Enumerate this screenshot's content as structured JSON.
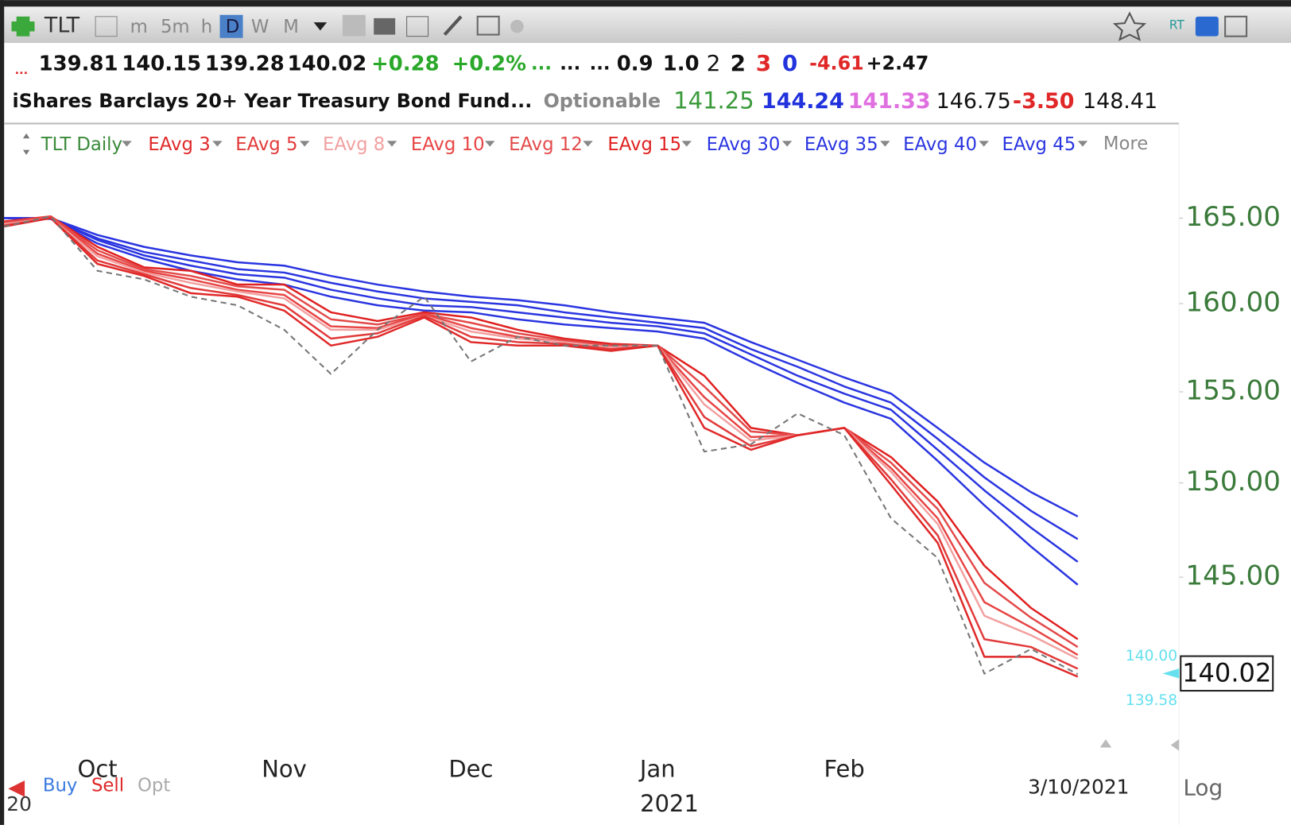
{
  "toolbar": {
    "symbol": "TLT",
    "intervals": [
      "m",
      "5m",
      "h",
      "D",
      "W",
      "M"
    ],
    "rt": "RT"
  },
  "quote_line_1": [
    "...",
    "139.81",
    "140.15",
    "139.28",
    "140.02",
    "+0.28",
    "+0.2%",
    "...",
    "...",
    "...",
    "0.9",
    "1.0",
    "2",
    "2",
    "3",
    "0",
    "-4.61",
    "+2.47"
  ],
  "quote_line_2": [
    "iShares Barclays 20+ Year Treasury Bond Fund",
    "...",
    "Optionable",
    "141.25",
    "144.24",
    "141.33",
    "146.75",
    "-3.50",
    "148.41"
  ],
  "legend_more": "More",
  "bottom": {
    "buy": "Buy",
    "sell": "Sell",
    "opt": "Opt",
    "log": "Log",
    "left_year": "20",
    "year": "2021",
    "last_date": "3/10/2021"
  },
  "price_markers": {
    "upper": "140.00",
    "last": "140.02",
    "lower": "139.58"
  },
  "chart_data": {
    "type": "line",
    "log_scale": true,
    "ylim": [
      136.7,
      168.2
    ],
    "yticks": [
      {
        "value": 165,
        "label": "165.00"
      },
      {
        "value": 160,
        "label": "160.00"
      },
      {
        "value": 155,
        "label": "155.00"
      },
      {
        "value": 150,
        "label": "150.00"
      },
      {
        "value": 145,
        "label": "145.00"
      }
    ],
    "categories": [
      null,
      null,
      "Oct",
      null,
      null,
      null,
      "Nov",
      null,
      null,
      null,
      "Dec",
      null,
      null,
      null,
      "Jan",
      null,
      null,
      null,
      "Feb",
      null,
      null,
      null,
      null,
      null
    ],
    "series": [
      {
        "name": "TLT Daily",
        "color": "#777777",
        "dashed": true,
        "values": [
          164.5,
          165.1,
          161.9,
          161.4,
          160.4,
          159.9,
          158.5,
          156.0,
          158.5,
          160.4,
          156.7,
          158.1,
          157.6,
          157.6,
          157.6,
          151.7,
          152.1,
          153.8,
          152.6,
          148.1,
          146.0,
          140.05,
          141.3,
          140.02
        ]
      },
      {
        "name": "EAvg 3",
        "color": "#e02828",
        "values": [
          164.5,
          165.0,
          162.3,
          161.6,
          160.6,
          160.4,
          159.6,
          157.6,
          158.1,
          159.2,
          157.8,
          157.6,
          157.6,
          157.3,
          157.6,
          153.0,
          151.8,
          152.6,
          153.0,
          149.9,
          146.8,
          140.9,
          140.9,
          139.9
        ]
      },
      {
        "name": "EAvg 5",
        "color": "#e23a3a",
        "values": [
          164.56,
          165.0,
          162.5,
          161.7,
          160.9,
          160.5,
          159.9,
          158.0,
          158.3,
          159.3,
          158.1,
          157.8,
          157.7,
          157.4,
          157.6,
          153.6,
          152.0,
          152.6,
          153.0,
          150.2,
          147.2,
          141.8,
          141.4,
          140.3
        ]
      },
      {
        "name": "EAvg 8",
        "color": "#f2a0a0",
        "values": [
          164.64,
          165.0,
          162.75,
          161.8,
          161.2,
          160.7,
          160.3,
          158.5,
          158.5,
          159.3,
          158.4,
          158.0,
          157.8,
          157.5,
          157.6,
          154.3,
          152.3,
          152.6,
          153.0,
          150.6,
          147.8,
          143.0,
          142.0,
          140.8
        ]
      },
      {
        "name": "EAvg 10",
        "color": "#e84444",
        "values": [
          164.68,
          165.1,
          162.9,
          161.9,
          161.4,
          160.8,
          160.5,
          158.7,
          158.6,
          159.4,
          158.6,
          158.1,
          157.8,
          157.5,
          157.6,
          154.7,
          152.5,
          152.6,
          153.0,
          150.8,
          148.1,
          143.7,
          142.4,
          141.0
        ]
      },
      {
        "name": "EAvg 12",
        "color": "#e34a4a",
        "values": [
          164.74,
          165.1,
          163.1,
          162.0,
          161.6,
          161.0,
          160.8,
          159.1,
          158.8,
          159.4,
          158.9,
          158.3,
          157.9,
          157.6,
          157.6,
          155.3,
          152.8,
          152.6,
          153.0,
          151.1,
          148.6,
          144.7,
          142.9,
          141.4
        ]
      },
      {
        "name": "EAvg 15",
        "color": "#e02020",
        "values": [
          164.8,
          165.1,
          163.3,
          162.1,
          161.9,
          161.1,
          161.1,
          159.5,
          159.0,
          159.5,
          159.2,
          158.5,
          158.0,
          157.7,
          157.6,
          155.9,
          153.0,
          152.6,
          153.0,
          151.4,
          149.0,
          145.6,
          143.4,
          141.8
        ]
      },
      {
        "name": "EAvg 30",
        "color": "#2a35e0",
        "values": [
          165.0,
          164.95,
          163.5,
          162.6,
          161.9,
          161.4,
          161.1,
          160.4,
          159.9,
          159.6,
          159.5,
          159.1,
          158.8,
          158.6,
          158.4,
          158.0,
          156.7,
          155.5,
          154.4,
          153.5,
          151.2,
          148.8,
          146.6,
          144.6
        ]
      },
      {
        "name": "EAvg 35",
        "color": "#2a35e0",
        "values": [
          165.0,
          164.97,
          163.7,
          162.8,
          162.2,
          161.7,
          161.5,
          160.8,
          160.3,
          159.9,
          159.8,
          159.5,
          159.2,
          158.9,
          158.7,
          158.3,
          157.1,
          155.9,
          154.9,
          154.0,
          151.8,
          149.6,
          147.6,
          145.8
        ]
      },
      {
        "name": "EAvg 40",
        "color": "#2a35e0",
        "values": [
          165.0,
          164.98,
          163.8,
          163.0,
          162.5,
          162.0,
          161.8,
          161.2,
          160.7,
          160.3,
          160.1,
          159.9,
          159.5,
          159.2,
          158.9,
          158.6,
          157.4,
          156.4,
          155.3,
          154.4,
          152.4,
          150.3,
          148.5,
          147.0
        ]
      },
      {
        "name": "EAvg 45",
        "color": "#2a35e0",
        "values": [
          165.0,
          165.0,
          164.0,
          163.3,
          162.8,
          162.4,
          162.2,
          161.6,
          161.1,
          160.7,
          160.4,
          160.2,
          159.9,
          159.5,
          159.2,
          158.9,
          157.8,
          156.8,
          155.8,
          154.9,
          153.0,
          151.1,
          149.5,
          148.2
        ]
      }
    ]
  }
}
